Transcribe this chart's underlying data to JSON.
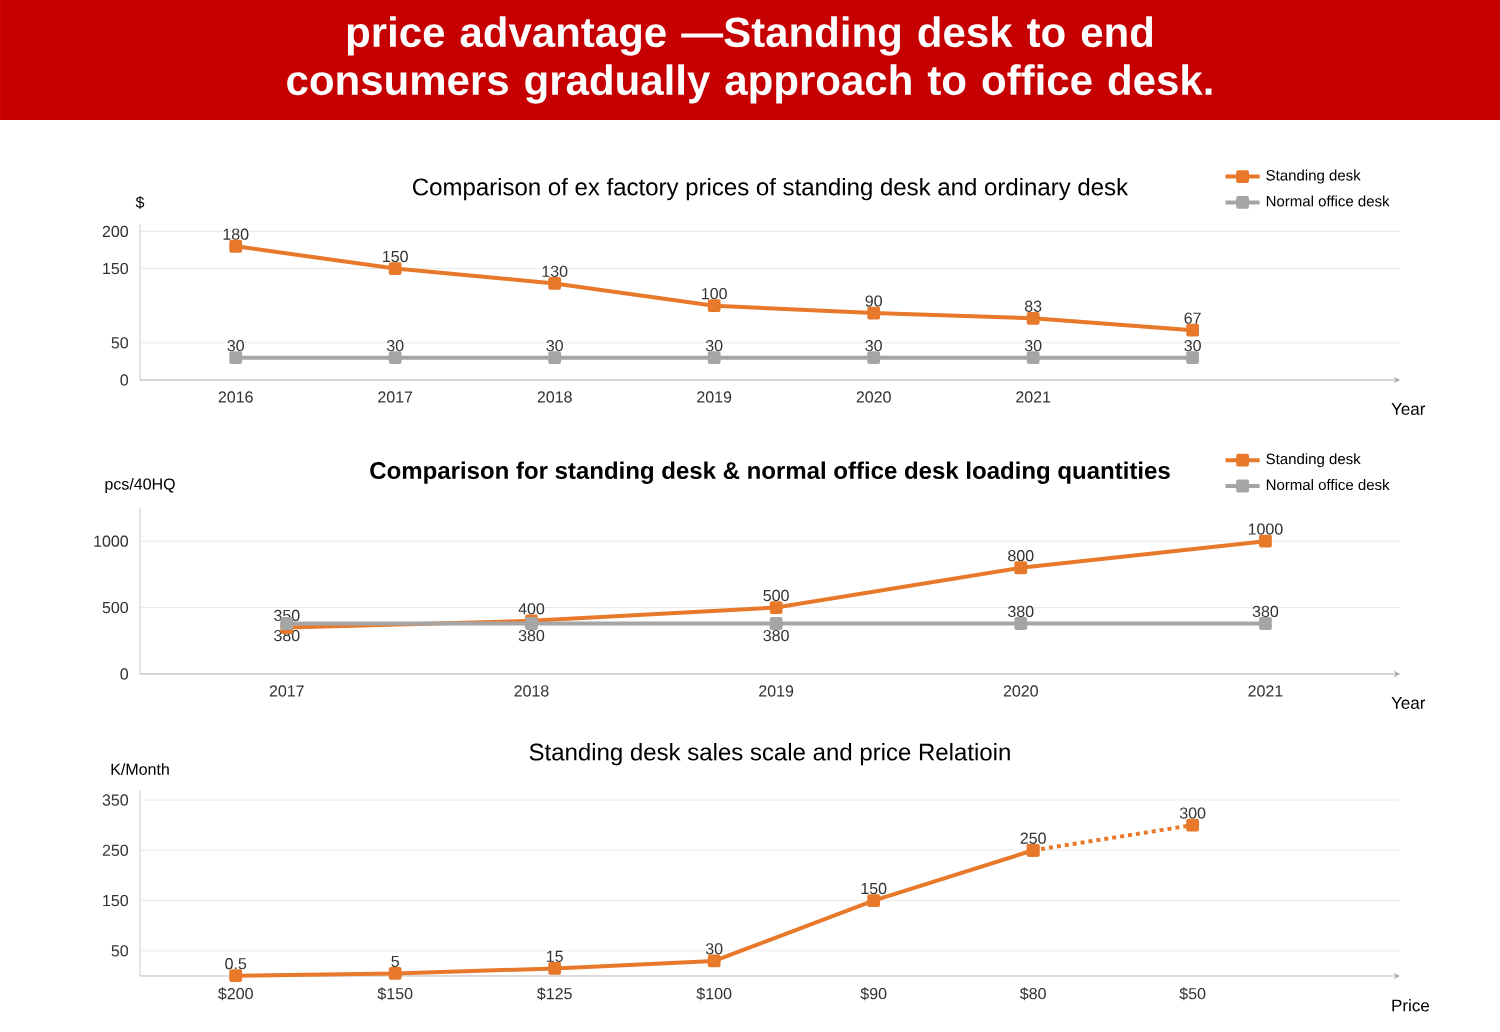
{
  "chart_data": [
    {
      "type": "other",
      "title": "price advantage —Standing desk to end consumers gradually approach to office desk."
    },
    {
      "type": "line",
      "title": "Comparison of ex factory prices of standing desk and ordinary desk",
      "xlabel": "Year",
      "ylabel": "$",
      "categories": [
        "2016",
        "2017",
        "2018",
        "2019",
        "2020",
        "2021",
        null
      ],
      "series": [
        {
          "name": "Standing desk",
          "color": "#e8792a",
          "values": [
            180,
            150,
            130,
            100,
            90,
            83,
            67
          ]
        },
        {
          "name": "Normal office desk",
          "color": "#a5a5a5",
          "values": [
            30,
            30,
            30,
            30,
            30,
            30,
            30
          ]
        }
      ],
      "ylim": [
        0,
        210
      ],
      "yticks": [
        0,
        50,
        150,
        200
      ],
      "grid": "y",
      "legend": "top right",
      "marker": "square",
      "data_labels": true
    },
    {
      "type": "line",
      "title": "Comparison for standing desk & normal office desk loading quantities",
      "xlabel": "Year",
      "ylabel": "pcs/40HQ",
      "categories": [
        "2017",
        "2018",
        "2019",
        "2020",
        "2021"
      ],
      "series": [
        {
          "name": "Standing desk",
          "color": "#e8792a",
          "values": [
            350,
            400,
            500,
            800,
            1000
          ]
        },
        {
          "name": "Normal office desk",
          "color": "#a5a5a5",
          "values": [
            380,
            380,
            380,
            380,
            380
          ]
        }
      ],
      "ylim": [
        0,
        1250
      ],
      "yticks": [
        0,
        500,
        1000
      ],
      "grid": "y",
      "legend": "top right",
      "marker": "square",
      "data_labels": true
    },
    {
      "type": "line",
      "title": "Standing desk sales scale and price Relatioin",
      "xlabel": "Price",
      "ylabel": "K/Month",
      "categories": [
        "$200",
        "$150",
        "$125",
        "$100",
        "$90",
        "$80",
        "$50"
      ],
      "series": [
        {
          "color": "#e8792a",
          "values": [
            0.5,
            5,
            15,
            30,
            150,
            250,
            null
          ],
          "value_labels": [
            "0.5",
            "5",
            "15",
            "30",
            "150",
            "250",
            null
          ]
        },
        {
          "color": "#e8792a",
          "line_style": "dotted",
          "values": [
            null,
            null,
            null,
            null,
            null,
            250,
            300
          ],
          "value_labels": [
            null,
            null,
            null,
            null,
            null,
            null,
            "300"
          ]
        }
      ],
      "ylim": [
        0,
        370
      ],
      "yticks": [
        50,
        150,
        250,
        350
      ],
      "grid": "y",
      "marker": "square"
    }
  ]
}
